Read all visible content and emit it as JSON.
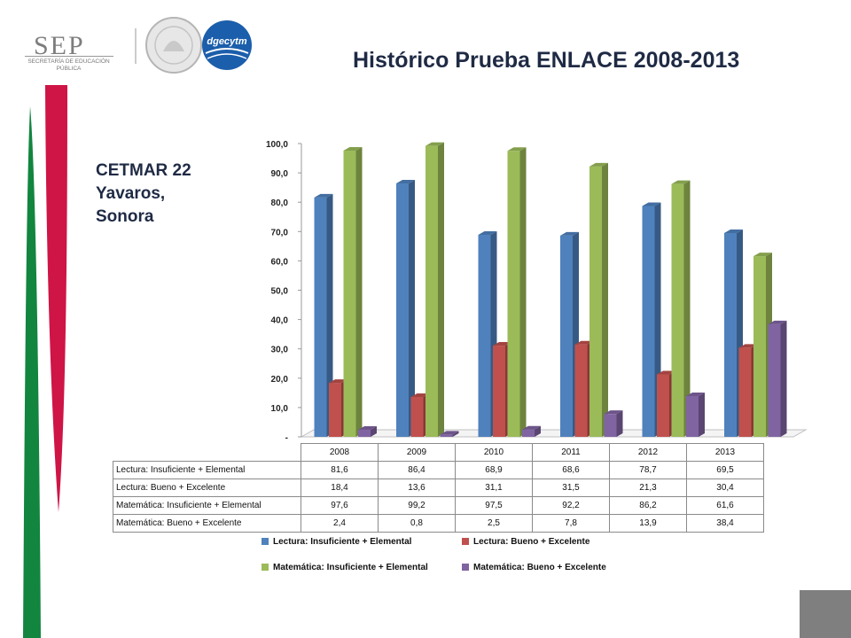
{
  "header": {
    "logo_text": "SEP",
    "logo_subtext": "SECRETARÍA DE EDUCACIÓN PÚBLICA",
    "logo2_text": "dgecytm"
  },
  "subtitle_lines": [
    "CETMAR 22",
    "Yavaros,",
    "Sonora"
  ],
  "colors": {
    "accent_green": "#12853f",
    "accent_red": "#cf1446",
    "series": [
      "#4f81bd",
      "#c0504d",
      "#9bbb59",
      "#8064a2"
    ]
  },
  "chart_data": {
    "type": "bar",
    "title": "Histórico Prueba ENLACE 2008-2013",
    "categories": [
      "2008",
      "2009",
      "2010",
      "2011",
      "2012",
      "2013"
    ],
    "series": [
      {
        "name": "Lectura: Insuficiente + Elemental",
        "values": [
          81.6,
          86.4,
          68.9,
          68.6,
          78.7,
          69.5
        ],
        "labels": [
          "81,6",
          "86,4",
          "68,9",
          "68,6",
          "78,7",
          "69,5"
        ]
      },
      {
        "name": "Lectura: Bueno + Excelente",
        "values": [
          18.4,
          13.6,
          31.1,
          31.5,
          21.3,
          30.4
        ],
        "labels": [
          "18,4",
          "13,6",
          "31,1",
          "31,5",
          "21,3",
          "30,4"
        ]
      },
      {
        "name": "Matemática: Insuficiente + Elemental",
        "values": [
          97.6,
          99.2,
          97.5,
          92.2,
          86.2,
          61.6
        ],
        "labels": [
          "97,6",
          "99,2",
          "97,5",
          "92,2",
          "86,2",
          "61,6"
        ]
      },
      {
        "name": "Matemática: Bueno + Excelente",
        "values": [
          2.4,
          0.8,
          2.5,
          7.8,
          13.9,
          38.4
        ],
        "labels": [
          "2,4",
          "0,8",
          "2,5",
          "7,8",
          "13,9",
          "38,4"
        ]
      }
    ],
    "y_ticks": [
      "-",
      "10,0",
      "20,0",
      "30,0",
      "40,0",
      "50,0",
      "60,0",
      "70,0",
      "80,0",
      "90,0",
      "100,0"
    ],
    "ylim": [
      0,
      100
    ],
    "grid": false,
    "data_table": true,
    "legend_position": "bottom"
  }
}
